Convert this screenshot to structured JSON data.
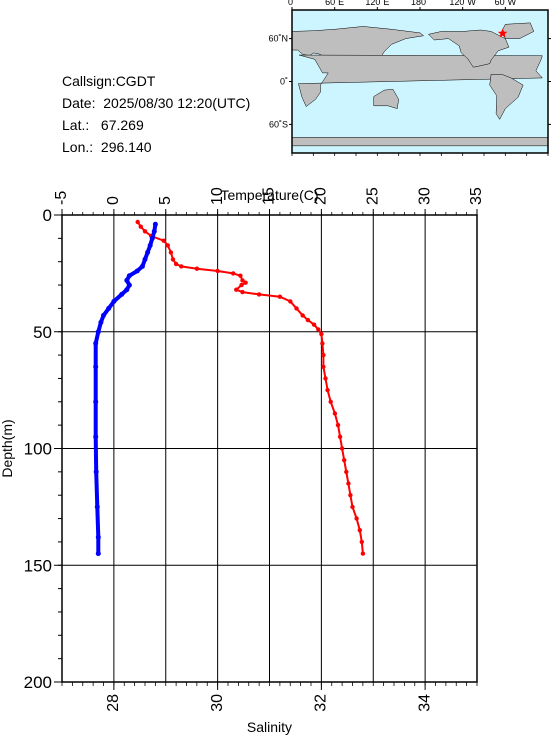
{
  "info": {
    "callsign": "Callsign:CGDT",
    "date": "Date:  2025/08/30 12:20(UTC)",
    "lat": "Lat.:   67.269",
    "lon": "Lon.:  296.140"
  },
  "map": {
    "lon_ticks": [
      "0˚",
      "60˚E",
      "120˚E",
      "180˚",
      "120˚W",
      "60˚W"
    ],
    "lat_ticks": [
      "60˚N",
      "0˚",
      "60˚S"
    ],
    "ocean_color": "#ccf5ff",
    "land_color": "#bebebe",
    "marker": {
      "lon": 296.14,
      "lat": 67.269,
      "color": "#ff0000",
      "shape": "star"
    }
  },
  "chart_data": {
    "type": "line",
    "ylabel": "Depth(m)",
    "ylim": [
      200,
      0
    ],
    "yticks": [
      0,
      50,
      100,
      150,
      200
    ],
    "temperature_axis": {
      "label": "Temperature(C)",
      "range": [
        -5,
        35
      ],
      "ticks": [
        -5,
        0,
        5,
        10,
        15,
        20,
        25,
        30,
        35
      ]
    },
    "salinity_axis": {
      "label": "Salinity",
      "range": [
        27,
        35
      ],
      "ticks": [
        28,
        30,
        32,
        34
      ]
    },
    "grid": true,
    "series": [
      {
        "variable": "temperature",
        "color": "#ff0000",
        "points": [
          {
            "x": 2.3,
            "depth": 3
          },
          {
            "x": 2.6,
            "depth": 5
          },
          {
            "x": 3.0,
            "depth": 7
          },
          {
            "x": 3.6,
            "depth": 9
          },
          {
            "x": 4.8,
            "depth": 11
          },
          {
            "x": 5.2,
            "depth": 13
          },
          {
            "x": 5.5,
            "depth": 16
          },
          {
            "x": 5.7,
            "depth": 19
          },
          {
            "x": 6.0,
            "depth": 21
          },
          {
            "x": 6.5,
            "depth": 22
          },
          {
            "x": 8.0,
            "depth": 23
          },
          {
            "x": 10.0,
            "depth": 24
          },
          {
            "x": 11.5,
            "depth": 25
          },
          {
            "x": 12.2,
            "depth": 26
          },
          {
            "x": 12.4,
            "depth": 28
          },
          {
            "x": 12.7,
            "depth": 29
          },
          {
            "x": 12.3,
            "depth": 30
          },
          {
            "x": 11.8,
            "depth": 32
          },
          {
            "x": 12.4,
            "depth": 33
          },
          {
            "x": 14.0,
            "depth": 34
          },
          {
            "x": 16.0,
            "depth": 35
          },
          {
            "x": 17.0,
            "depth": 37
          },
          {
            "x": 17.6,
            "depth": 40
          },
          {
            "x": 18.2,
            "depth": 43
          },
          {
            "x": 18.7,
            "depth": 45
          },
          {
            "x": 19.3,
            "depth": 47
          },
          {
            "x": 19.7,
            "depth": 49
          },
          {
            "x": 20.0,
            "depth": 51
          },
          {
            "x": 20.1,
            "depth": 55
          },
          {
            "x": 20.2,
            "depth": 60
          },
          {
            "x": 20.2,
            "depth": 65
          },
          {
            "x": 20.4,
            "depth": 70
          },
          {
            "x": 20.6,
            "depth": 75
          },
          {
            "x": 20.9,
            "depth": 80
          },
          {
            "x": 21.3,
            "depth": 85
          },
          {
            "x": 21.6,
            "depth": 90
          },
          {
            "x": 21.8,
            "depth": 95
          },
          {
            "x": 22.0,
            "depth": 100
          },
          {
            "x": 22.2,
            "depth": 105
          },
          {
            "x": 22.4,
            "depth": 110
          },
          {
            "x": 22.6,
            "depth": 115
          },
          {
            "x": 22.8,
            "depth": 120
          },
          {
            "x": 23.0,
            "depth": 125
          },
          {
            "x": 23.4,
            "depth": 130
          },
          {
            "x": 23.7,
            "depth": 135
          },
          {
            "x": 23.9,
            "depth": 140
          },
          {
            "x": 24.0,
            "depth": 145
          }
        ]
      },
      {
        "variable": "salinity",
        "color": "#0000ff",
        "points": [
          {
            "x": 28.8,
            "depth": 4
          },
          {
            "x": 28.78,
            "depth": 7
          },
          {
            "x": 28.74,
            "depth": 10
          },
          {
            "x": 28.7,
            "depth": 13
          },
          {
            "x": 28.65,
            "depth": 16
          },
          {
            "x": 28.6,
            "depth": 19
          },
          {
            "x": 28.55,
            "depth": 22
          },
          {
            "x": 28.45,
            "depth": 24
          },
          {
            "x": 28.3,
            "depth": 26
          },
          {
            "x": 28.25,
            "depth": 28
          },
          {
            "x": 28.3,
            "depth": 30
          },
          {
            "x": 28.25,
            "depth": 32
          },
          {
            "x": 28.15,
            "depth": 34
          },
          {
            "x": 28.0,
            "depth": 37
          },
          {
            "x": 27.9,
            "depth": 40
          },
          {
            "x": 27.8,
            "depth": 43
          },
          {
            "x": 27.75,
            "depth": 46
          },
          {
            "x": 27.7,
            "depth": 50
          },
          {
            "x": 27.65,
            "depth": 55
          },
          {
            "x": 27.65,
            "depth": 65
          },
          {
            "x": 27.65,
            "depth": 80
          },
          {
            "x": 27.65,
            "depth": 95
          },
          {
            "x": 27.66,
            "depth": 110
          },
          {
            "x": 27.68,
            "depth": 125
          },
          {
            "x": 27.7,
            "depth": 138
          },
          {
            "x": 27.7,
            "depth": 145
          }
        ]
      }
    ]
  }
}
